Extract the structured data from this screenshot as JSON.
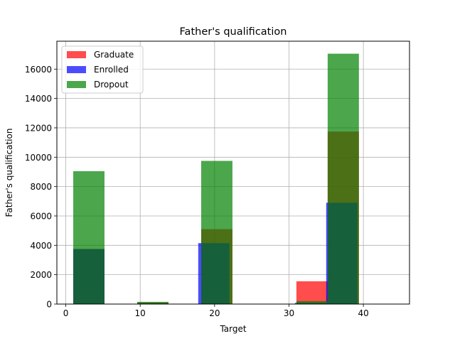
{
  "chart_data": {
    "type": "bar",
    "title": "Father's qualification",
    "xlabel": "Target",
    "ylabel": "Father's qualification",
    "xlim": [
      -1.2,
      46.2
    ],
    "ylim": [
      0,
      17900
    ],
    "xticks": [
      0,
      10,
      20,
      30,
      40
    ],
    "yticks": [
      0,
      2000,
      4000,
      6000,
      8000,
      10000,
      12000,
      14000,
      16000
    ],
    "grid": true,
    "legend_position": "upper-left",
    "series": [
      {
        "name": "Graduate",
        "color": "#ff0000",
        "opacity": 0.7,
        "bins": [
          {
            "x0": 1.0,
            "x1": 5.2,
            "value": 3750
          },
          {
            "x0": 9.6,
            "x1": 13.8,
            "value": 110
          },
          {
            "x0": 18.2,
            "x1": 22.4,
            "value": 5100
          },
          {
            "x0": 31.0,
            "x1": 35.2,
            "value": 1550
          },
          {
            "x0": 35.2,
            "x1": 39.4,
            "value": 11750
          }
        ]
      },
      {
        "name": "Enrolled",
        "color": "#0000ff",
        "opacity": 0.7,
        "bins": [
          {
            "x0": 1.0,
            "x1": 5.2,
            "value": 3750
          },
          {
            "x0": 9.6,
            "x1": 13.8,
            "value": 50
          },
          {
            "x0": 17.8,
            "x1": 22.0,
            "value": 4150
          },
          {
            "x0": 30.8,
            "x1": 35.0,
            "value": 80
          },
          {
            "x0": 35.0,
            "x1": 39.2,
            "value": 6900
          }
        ]
      },
      {
        "name": "Dropout",
        "color": "#008000",
        "opacity": 0.7,
        "bins": [
          {
            "x0": 1.0,
            "x1": 5.2,
            "value": 9050
          },
          {
            "x0": 9.6,
            "x1": 13.8,
            "value": 150
          },
          {
            "x0": 18.2,
            "x1": 22.4,
            "value": 9750
          },
          {
            "x0": 31.0,
            "x1": 35.2,
            "value": 200
          },
          {
            "x0": 35.2,
            "x1": 39.4,
            "value": 17050
          }
        ]
      }
    ]
  }
}
